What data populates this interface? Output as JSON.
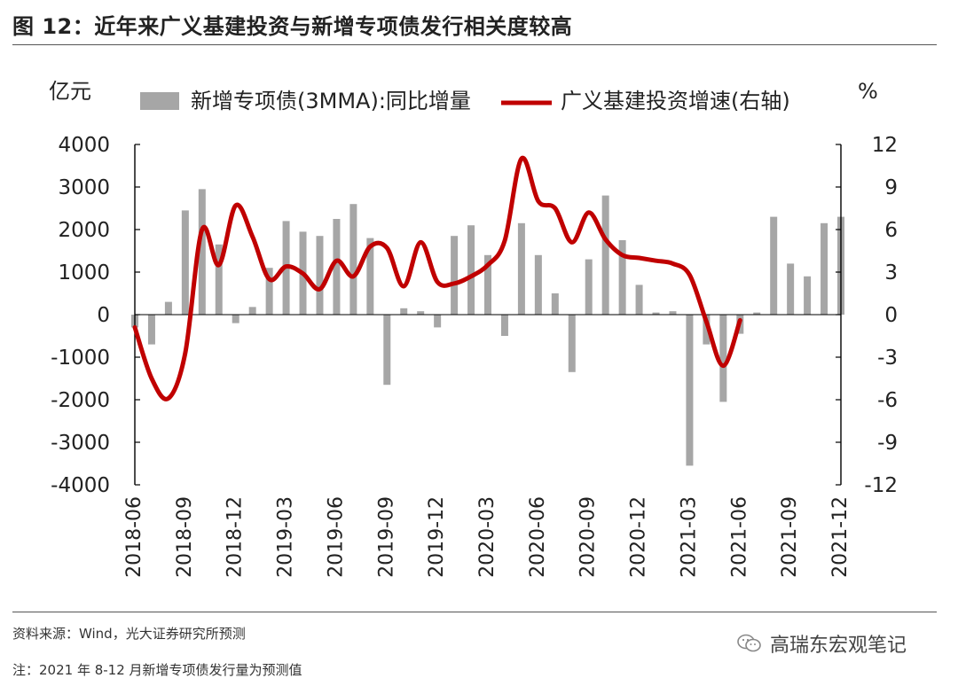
{
  "page": {
    "title": "图 12：近年来广义基建投资与新增专项债发行相关度较高",
    "source": "资料来源：Wind，光大证券研究所预测",
    "note": "注：2021 年 8-12 月新增专项债发行量为预测值",
    "watermark": "高瑞东宏观笔记"
  },
  "colors": {
    "bar": "#A6A6A6",
    "line": "#C00000",
    "axis": "#000000",
    "text": "#222222"
  },
  "chart_data": {
    "type": "bar",
    "x": [
      "2018-06",
      "2018-07",
      "2018-08",
      "2018-09",
      "2018-10",
      "2018-11",
      "2018-12",
      "2019-01",
      "2019-02",
      "2019-03",
      "2019-04",
      "2019-05",
      "2019-06",
      "2019-07",
      "2019-08",
      "2019-09",
      "2019-10",
      "2019-11",
      "2019-12",
      "2020-01",
      "2020-02",
      "2020-03",
      "2020-04",
      "2020-05",
      "2020-06",
      "2020-07",
      "2020-08",
      "2020-09",
      "2020-10",
      "2020-11",
      "2020-12",
      "2021-01",
      "2021-02",
      "2021-03",
      "2021-04",
      "2021-05",
      "2021-06",
      "2021-07",
      "2021-08",
      "2021-09",
      "2021-10",
      "2021-11",
      "2021-12"
    ],
    "xticks": [
      "2018-06",
      "2018-09",
      "2018-12",
      "2019-03",
      "2019-06",
      "2019-09",
      "2019-12",
      "2020-03",
      "2020-06",
      "2020-09",
      "2020-12",
      "2021-03",
      "2021-06",
      "2021-09",
      "2021-12"
    ],
    "left_axis": {
      "label": "亿元",
      "ylim": [
        -4000,
        4000
      ],
      "ticks": [
        "4000",
        "3000",
        "2000",
        "1000",
        "0",
        "-1000",
        "-2000",
        "-3000",
        "-4000"
      ]
    },
    "right_axis": {
      "label": "%",
      "ylim": [
        -12,
        12
      ],
      "ticks": [
        "12",
        "9",
        "6",
        "3",
        "0",
        "-3",
        "-6",
        "-9",
        "-12"
      ]
    },
    "legend": {
      "placement": "top",
      "bar_label": "新增专项债(3MMA):同比增量",
      "line_label": "广义基建投资增速(右轴)"
    },
    "grid": false,
    "series": [
      {
        "name": "新增专项债(3MMA):同比增量",
        "type": "bar",
        "axis": "left",
        "values": [
          -300,
          -700,
          300,
          2450,
          2950,
          1650,
          -200,
          180,
          1100,
          2200,
          1950,
          1850,
          2250,
          2600,
          1800,
          -1650,
          150,
          80,
          -300,
          1850,
          2100,
          1400,
          -500,
          2150,
          1400,
          500,
          -1350,
          1300,
          2800,
          1750,
          700,
          50,
          80,
          -3550,
          -700,
          -2050,
          -450,
          50,
          2300,
          1200,
          900,
          2150,
          2300
        ]
      },
      {
        "name": "广义基建投资增速(右轴)",
        "type": "line",
        "axis": "right",
        "x": [
          "2018-06",
          "2018-07",
          "2018-08",
          "2018-09",
          "2018-10",
          "2018-11",
          "2018-12",
          "2019-01",
          "2019-02",
          "2019-03",
          "2019-04",
          "2019-05",
          "2019-06",
          "2019-07",
          "2019-08",
          "2019-09",
          "2019-10",
          "2019-11",
          "2019-12",
          "2020-01",
          "2020-02",
          "2020-03",
          "2020-04",
          "2020-05",
          "2020-06",
          "2020-07",
          "2020-08",
          "2020-09",
          "2020-10",
          "2020-11",
          "2020-12",
          "2021-01",
          "2021-02",
          "2021-03",
          "2021-04",
          "2021-05",
          "2021-06"
        ],
        "values": [
          -0.9,
          -4.5,
          -5.9,
          -2.7,
          6.0,
          3.5,
          7.7,
          5.5,
          2.5,
          3.4,
          2.9,
          1.8,
          3.8,
          2.7,
          4.8,
          4.7,
          2.0,
          5.1,
          2.3,
          2.2,
          2.7,
          3.5,
          5.2,
          11.0,
          8.0,
          7.5,
          5.1,
          7.2,
          5.3,
          4.2,
          4.0,
          3.8,
          3.6,
          2.8,
          -0.5,
          -3.6,
          -0.4
        ]
      }
    ]
  }
}
